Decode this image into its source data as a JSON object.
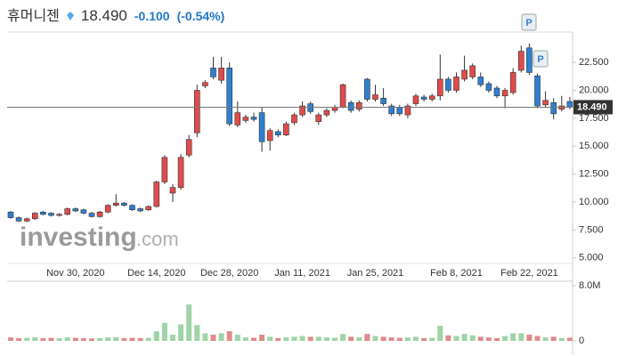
{
  "header": {
    "name": "휴머니젠",
    "price": "18.490",
    "change": "-0.100",
    "change_pct": "(-0.54%)"
  },
  "chart_data": {
    "type": "candlestick",
    "watermark": [
      "investing",
      ".com"
    ],
    "markers": [
      "P",
      "P"
    ],
    "categories": [
      null,
      null,
      null,
      null,
      null,
      null,
      null,
      null,
      "Nov 30, 2020",
      null,
      null,
      null,
      null,
      null,
      null,
      null,
      null,
      null,
      "Dec 14, 2020",
      null,
      null,
      null,
      null,
      null,
      null,
      null,
      null,
      "Dec 28, 2020",
      null,
      null,
      null,
      null,
      null,
      null,
      null,
      null,
      "Jan 11, 2021",
      null,
      null,
      null,
      null,
      null,
      null,
      null,
      null,
      "Jan 25, 2021",
      null,
      null,
      null,
      null,
      null,
      null,
      null,
      null,
      null,
      "Feb 8, 2021",
      null,
      null,
      null,
      null,
      null,
      null,
      null,
      null,
      "Feb 22, 2021",
      null,
      null,
      null,
      null,
      null
    ],
    "open": [
      9.1,
      8.6,
      8.3,
      8.5,
      9.1,
      9.0,
      8.8,
      8.9,
      9.4,
      9.3,
      9.0,
      8.7,
      9.1,
      9.7,
      9.9,
      9.7,
      9.4,
      9.3,
      9.6,
      11.8,
      10.8,
      11.3,
      14.2,
      16.2,
      20.4,
      22.0,
      20.9,
      22.0,
      16.9,
      17.3,
      17.6,
      18.0,
      15.5,
      16.3,
      16.0,
      17.1,
      17.8,
      18.8,
      17.2,
      17.8,
      18.2,
      18.5,
      18.9,
      18.3,
      21.0,
      19.2,
      19.3,
      18.6,
      18.5,
      17.8,
      18.8,
      19.4,
      19.2,
      19.5,
      21.0,
      20.0,
      21.0,
      21.2,
      21.2,
      20.6,
      20.2,
      19.5,
      19.8,
      21.8,
      23.8,
      21.3,
      18.7,
      18.9,
      18.3,
      19.0
    ],
    "high": [
      9.2,
      8.7,
      8.6,
      9.1,
      9.2,
      9.1,
      9.0,
      9.5,
      9.5,
      9.4,
      9.1,
      9.2,
      9.8,
      10.7,
      10.0,
      9.8,
      9.5,
      9.7,
      11.9,
      14.2,
      11.6,
      14.3,
      16.0,
      20.5,
      20.9,
      23.0,
      23.0,
      22.5,
      19.0,
      17.8,
      18.0,
      18.5,
      16.6,
      16.5,
      17.2,
      18.0,
      19.0,
      19.0,
      18.0,
      18.4,
      18.7,
      20.6,
      19.1,
      19.1,
      21.1,
      20.5,
      20.2,
      18.8,
      18.7,
      18.8,
      19.7,
      19.6,
      19.7,
      23.2,
      21.2,
      21.6,
      23.1,
      22.4,
      21.6,
      20.8,
      20.4,
      20.2,
      22.0,
      24.0,
      24.2,
      21.5,
      19.9,
      19.3,
      19.5,
      19.4
    ],
    "low": [
      8.5,
      8.2,
      8.2,
      8.4,
      8.8,
      8.7,
      8.7,
      8.8,
      9.1,
      8.9,
      8.6,
      8.6,
      9.0,
      9.6,
      9.6,
      9.2,
      9.1,
      9.2,
      9.5,
      11.6,
      10.0,
      11.1,
      14.0,
      15.8,
      20.2,
      21.0,
      20.6,
      16.8,
      16.7,
      17.1,
      17.2,
      14.5,
      14.6,
      15.8,
      15.9,
      16.9,
      17.6,
      17.9,
      16.9,
      17.6,
      18.0,
      18.4,
      18.0,
      18.1,
      19.0,
      19.0,
      18.6,
      17.7,
      17.7,
      17.5,
      18.6,
      19.0,
      19.0,
      19.1,
      19.8,
      19.8,
      20.8,
      21.0,
      20.3,
      19.8,
      19.3,
      18.4,
      19.6,
      21.6,
      21.4,
      18.4,
      18.5,
      17.4,
      18.1,
      18.3
    ],
    "close": [
      8.6,
      8.3,
      8.5,
      9.0,
      8.9,
      8.8,
      8.9,
      9.4,
      9.2,
      9.0,
      8.7,
      9.1,
      9.7,
      9.9,
      9.7,
      9.3,
      9.2,
      9.6,
      11.8,
      14.0,
      11.3,
      14.0,
      15.6,
      20.0,
      20.7,
      21.2,
      22.0,
      17.0,
      18.0,
      17.6,
      17.4,
      15.4,
      16.4,
      16.0,
      17.0,
      17.8,
      18.6,
      18.1,
      17.8,
      18.2,
      18.5,
      20.5,
      18.2,
      18.9,
      19.2,
      19.6,
      18.8,
      17.9,
      17.9,
      18.6,
      19.5,
      19.2,
      19.5,
      21.0,
      20.0,
      21.2,
      21.8,
      22.2,
      20.5,
      20.0,
      19.5,
      20.0,
      21.6,
      23.5,
      21.6,
      18.6,
      19.1,
      17.9,
      18.6,
      18.49
    ],
    "volume": [
      500000,
      400000,
      450000,
      500000,
      400000,
      450000,
      400000,
      500000,
      450000,
      400000,
      350000,
      400000,
      500000,
      550000,
      400000,
      450000,
      400000,
      450000,
      1400000,
      2600000,
      900000,
      2400000,
      5300000,
      2300000,
      1100000,
      900000,
      1100000,
      1400000,
      900000,
      500000,
      450000,
      900000,
      600000,
      400000,
      500000,
      600000,
      700000,
      600000,
      600000,
      500000,
      450000,
      1000000,
      600000,
      500000,
      1000000,
      700000,
      600000,
      500000,
      450000,
      500000,
      600000,
      400000,
      450000,
      2200000,
      800000,
      700000,
      1000000,
      800000,
      600000,
      500000,
      400000,
      700000,
      1100000,
      1100000,
      900000,
      700000,
      500000,
      600000,
      400000,
      450000
    ],
    "up_color": "#e04b4b",
    "down_color": "#2f7fd1",
    "volume_up_color": "#9fd4a8",
    "volume_down_color": "#e08a8a",
    "ylim": [
      4.5,
      24.9
    ],
    "yticks": [
      {
        "value": 5,
        "label": "5.000"
      },
      {
        "value": 7.5,
        "label": "7.500"
      },
      {
        "value": 10,
        "label": "10.000"
      },
      {
        "value": 12.5,
        "label": "12.500"
      },
      {
        "value": 15,
        "label": "15.000"
      },
      {
        "value": 17.5,
        "label": "17.500"
      },
      {
        "value": 20,
        "label": "20.000"
      },
      {
        "value": 22.5,
        "label": "22.500"
      }
    ],
    "last_price": {
      "value": 18.49,
      "label": "18.490"
    },
    "volume_ylim": [
      0,
      8000000
    ],
    "volume_yticks": [
      0,
      {
        "value": 8000000,
        "label": "8.0M"
      }
    ]
  }
}
